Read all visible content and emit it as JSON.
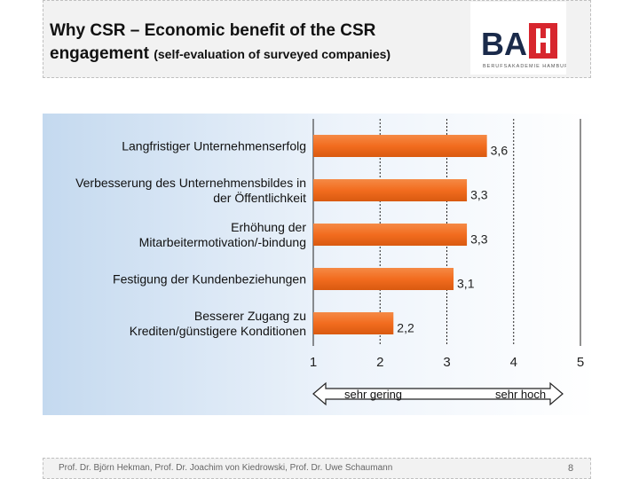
{
  "header": {
    "title_line1": "Why CSR – Economic benefit of the CSR",
    "title_line2": "engagement",
    "title_sub": "(self-evaluation of surveyed companies)",
    "logo_text": "BAH",
    "logo_tagline": "BERUFSAKADEMIE HAMBURG"
  },
  "colors": {
    "bar": "#f26c1f",
    "grid": "#222222",
    "accent_red": "#d7262e",
    "logo_navy": "#1a2a4a"
  },
  "chart_data": {
    "type": "bar",
    "orientation": "horizontal",
    "categories": [
      [
        "Langfristiger Unternehmenserfolg"
      ],
      [
        "Verbesserung des Unternehmensbildes in",
        "der Öffentlichkeit"
      ],
      [
        "Erhöhung der",
        "Mitarbeitermotivation/-bindung"
      ],
      [
        "Festigung der Kundenbeziehungen"
      ],
      [
        "Besserer Zugang zu",
        "Krediten/günstigere Konditionen"
      ]
    ],
    "values": [
      3.6,
      3.3,
      3.3,
      3.1,
      2.2
    ],
    "value_labels": [
      "3,6",
      "3,3",
      "3,3",
      "3,1",
      "2,2"
    ],
    "xlim": [
      1,
      5
    ],
    "xticks": [
      1,
      2,
      3,
      4,
      5
    ],
    "scale_low": "sehr gering",
    "scale_high": "sehr hoch"
  },
  "footer": {
    "authors": "Prof. Dr. Björn Hekman, Prof. Dr. Joachim von Kiedrowski, Prof. Dr. Uwe Schaumann",
    "page": "8"
  }
}
